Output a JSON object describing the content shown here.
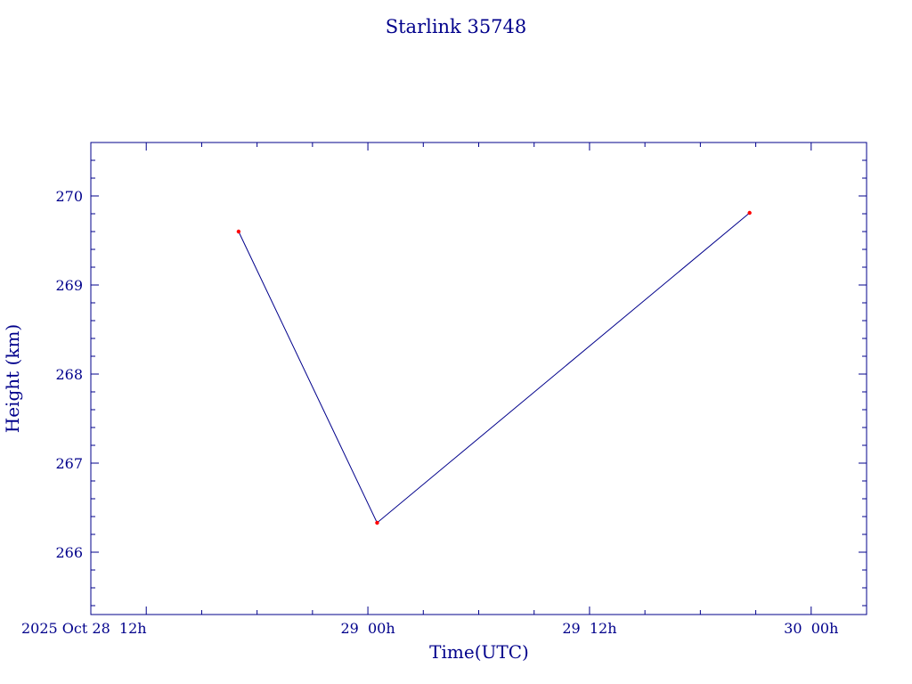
{
  "chart_data": {
    "type": "line",
    "title": "Starlink 35748",
    "xlabel": "Time(UTC)",
    "ylabel": "Height (km)",
    "x_ticks": [
      "2025 Oct 28  12h",
      "29  00h",
      "29  12h",
      "30  00h"
    ],
    "y_ticks": [
      "266",
      "267",
      "268",
      "269",
      "270"
    ],
    "ylim": [
      265.3,
      270.6
    ],
    "xlim": [
      "2025-10-28T09:00",
      "2025-10-30T03:00"
    ],
    "series": [
      {
        "x": [
          "2025-10-28T17:00",
          "2025-10-29T00:30",
          "2025-10-29T20:40"
        ],
        "values": [
          269.6,
          266.33,
          269.81
        ]
      }
    ],
    "grid": false,
    "legend": "none",
    "line_color": "#00008b",
    "marker_color": "#ff0000"
  }
}
